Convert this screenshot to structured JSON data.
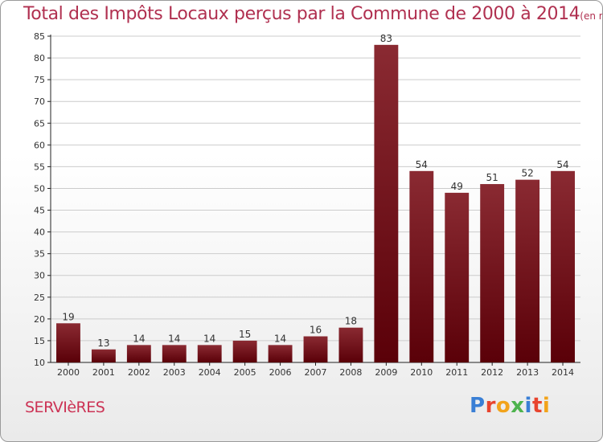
{
  "header": {
    "title": "Total des Impôts Locaux perçus par la Commune de 2000 à 2014",
    "unit": "(en milliers d'€)"
  },
  "commune_name": "SERVIèRES",
  "brand": {
    "text": "Proxiti",
    "letter_colors": [
      "#3a7fd5",
      "#e8442e",
      "#f2a31b",
      "#4db34d",
      "#3a7fd5",
      "#e8442e",
      "#f2a31b"
    ]
  },
  "colors": {
    "bar_top": "#8a2a32",
    "bar_bottom": "#5a0008",
    "grid": "#cccccc",
    "title": "#b03050",
    "axis": "#222222"
  },
  "chart_data": {
    "type": "bar",
    "title": "Total des Impôts Locaux perçus par la Commune de 2000 à 2014",
    "subtitle": "(en milliers d'€)",
    "xlabel": "",
    "ylabel": "",
    "categories": [
      "2000",
      "2001",
      "2002",
      "2003",
      "2004",
      "2005",
      "2006",
      "2007",
      "2008",
      "2009",
      "2010",
      "2011",
      "2012",
      "2013",
      "2014"
    ],
    "values": [
      19,
      13,
      14,
      14,
      14,
      15,
      14,
      16,
      18,
      83,
      54,
      49,
      51,
      52,
      54
    ],
    "ylim": [
      10,
      85
    ],
    "yticks": [
      10,
      15,
      20,
      25,
      30,
      35,
      40,
      45,
      50,
      55,
      60,
      65,
      70,
      75,
      80,
      85
    ],
    "grid": true,
    "legend": "none"
  }
}
